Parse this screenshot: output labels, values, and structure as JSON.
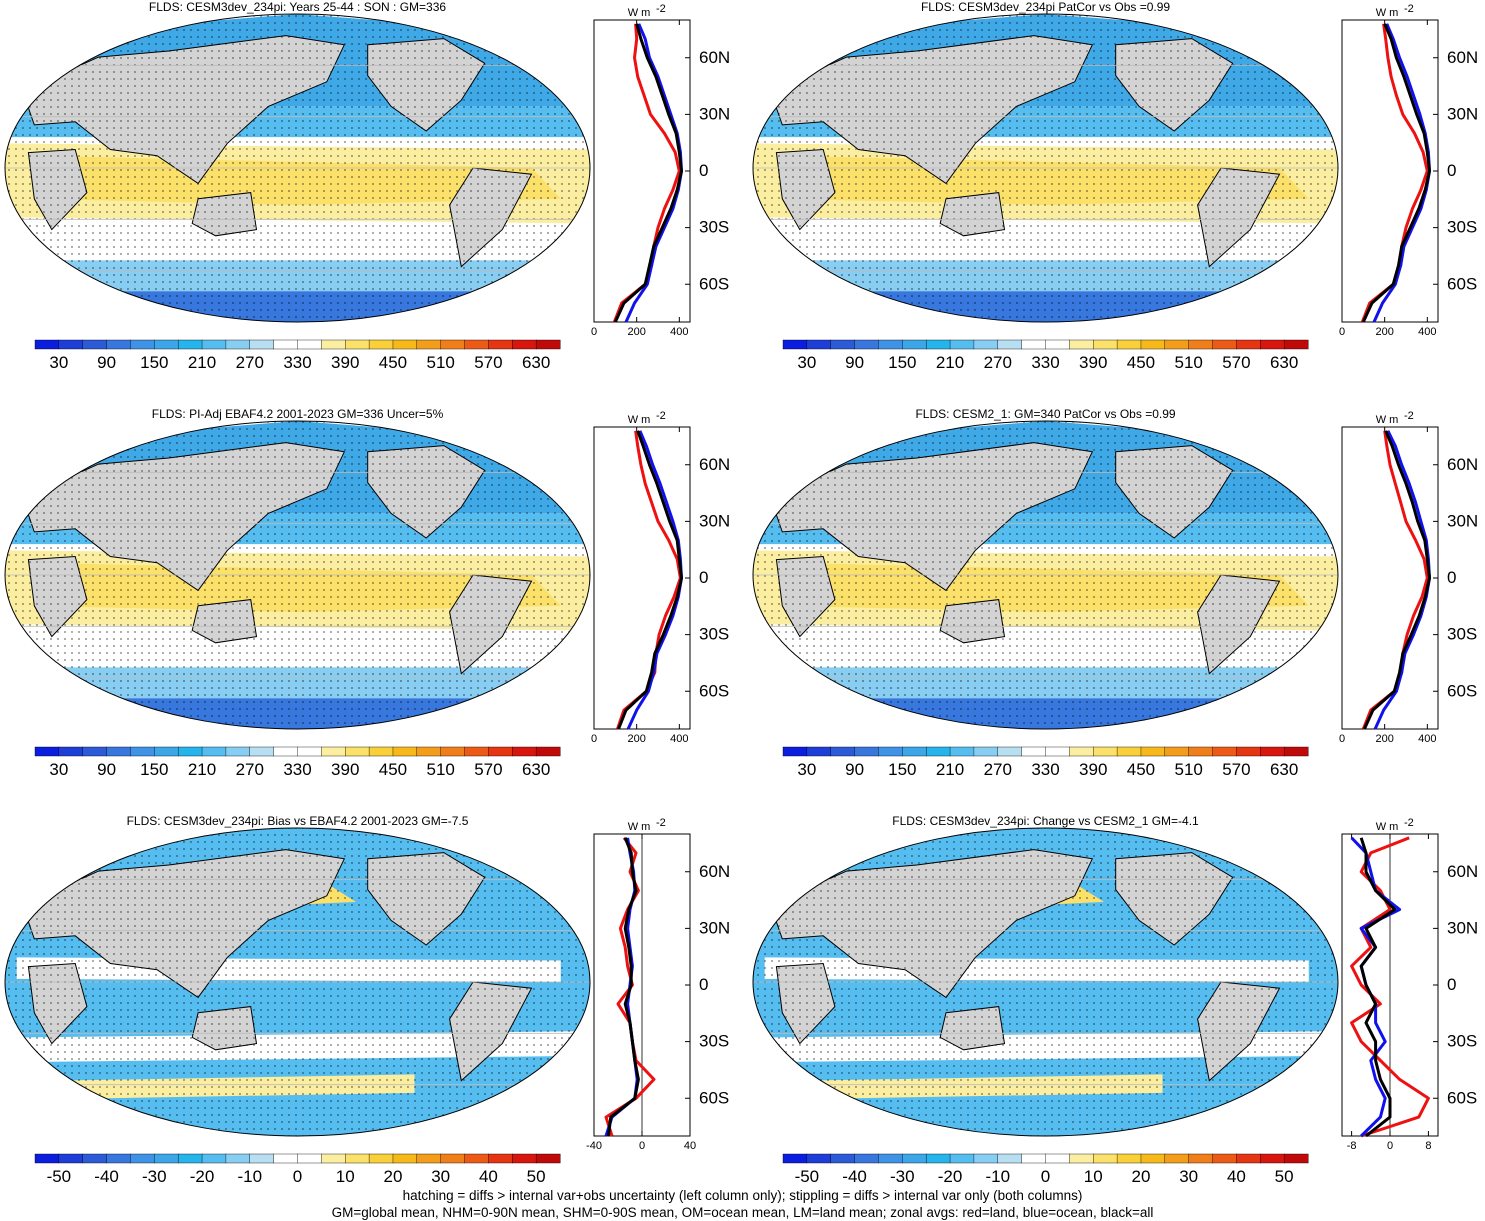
{
  "panels": [
    {
      "title": "FLDS: CESM3dev_234pi: Years 25-44 : SON : GM=336",
      "kind": "abs"
    },
    {
      "title": "FLDS: CESM3dev_234pi PatCor vs Obs =0.99",
      "kind": "abs"
    },
    {
      "title": "FLDS: PI-Adj EBAF4.2 2001-2023 GM=336 Uncer=5%",
      "kind": "abs"
    },
    {
      "title": "FLDS: CESM2_1: GM=340 PatCor vs Obs =0.99",
      "kind": "abs"
    },
    {
      "title": "FLDS: CESM3dev_234pi: Bias vs EBAF4.2 2001-2023  GM=-7.5",
      "kind": "diff"
    },
    {
      "title": "FLDS: CESM3dev_234pi: Change vs CESM2_1 GM=-4.1",
      "kind": "diff"
    }
  ],
  "colorbars": {
    "abs_labels": [
      "30",
      "90",
      "150",
      "210",
      "270",
      "330",
      "390",
      "450",
      "510",
      "570",
      "630"
    ],
    "diff_labels": [
      "-50",
      "-40",
      "-30",
      "-20",
      "-10",
      "0",
      "10",
      "20",
      "30",
      "40",
      "50"
    ],
    "colors": [
      "#0b1ee0",
      "#1e3ed8",
      "#2d5ad6",
      "#3777de",
      "#3f93e6",
      "#3ba6e8",
      "#26b4ec",
      "#56bdf0",
      "#88cdf2",
      "#b8def2",
      "#ffffff",
      "#ffffff",
      "#fbeea0",
      "#fbe06a",
      "#f9cf3a",
      "#f7b819",
      "#f49d1a",
      "#f07e1a",
      "#ec5a16",
      "#e53512",
      "#d8160e",
      "#c00a0a"
    ]
  },
  "zonal": {
    "unit": "W m",
    "unit_sup": "-2",
    "lat_labels": [
      "60N",
      "30N",
      "0",
      "30S",
      "60S"
    ],
    "abs_ticks": [
      "0",
      "200",
      "400"
    ],
    "diff_ticks_left": [
      "-40",
      "0",
      "40"
    ],
    "diff_ticks_right": [
      "-8",
      "0",
      "8"
    ]
  },
  "chart_data": [
    {
      "type": "line",
      "panel": 1,
      "title": "FLDS: CESM3dev_234pi: Years 25-44 : SON : GM=336",
      "xlim": [
        0,
        450
      ],
      "ylim": [
        -80,
        80
      ],
      "ylabel": "",
      "xlabel": "W m-2",
      "lat": [
        78,
        70,
        60,
        50,
        40,
        30,
        20,
        10,
        0,
        -10,
        -20,
        -30,
        -40,
        -50,
        -60,
        -70,
        -80
      ],
      "series": [
        {
          "name": "land",
          "color": "#e11",
          "values": [
            195,
            200,
            190,
            205,
            235,
            265,
            330,
            380,
            400,
            370,
            330,
            300,
            280,
            270,
            240,
            130,
            95
          ]
        },
        {
          "name": "ocean",
          "color": "#11e",
          "values": [
            210,
            240,
            260,
            300,
            330,
            360,
            390,
            405,
            410,
            395,
            370,
            330,
            290,
            270,
            250,
            190,
            150
          ]
        },
        {
          "name": "all",
          "color": "#000",
          "values": [
            200,
            220,
            250,
            290,
            320,
            350,
            385,
            400,
            410,
            390,
            360,
            320,
            280,
            260,
            240,
            140,
            100
          ]
        }
      ]
    },
    {
      "type": "line",
      "panel": 2,
      "title": "FLDS: CESM3dev_234pi PatCor vs Obs =0.99",
      "xlim": [
        0,
        450
      ],
      "ylim": [
        -80,
        80
      ],
      "ylabel": "",
      "xlabel": "W m-2",
      "lat": [
        78,
        70,
        60,
        50,
        40,
        30,
        20,
        10,
        0,
        -10,
        -20,
        -30,
        -40,
        -50,
        -60,
        -70,
        -80
      ],
      "series": [
        {
          "name": "land",
          "color": "#e11",
          "values": [
            195,
            205,
            215,
            230,
            255,
            285,
            340,
            380,
            400,
            370,
            330,
            300,
            280,
            275,
            240,
            130,
            95
          ]
        },
        {
          "name": "ocean",
          "color": "#11e",
          "values": [
            210,
            240,
            270,
            305,
            335,
            365,
            390,
            405,
            410,
            395,
            370,
            330,
            290,
            275,
            250,
            190,
            150
          ]
        },
        {
          "name": "all",
          "color": "#000",
          "values": [
            200,
            230,
            255,
            290,
            320,
            350,
            385,
            400,
            410,
            390,
            360,
            320,
            280,
            265,
            240,
            140,
            100
          ]
        }
      ]
    },
    {
      "type": "line",
      "panel": 3,
      "title": "FLDS: PI-Adj EBAF4.2 2001-2023 GM=336 Uncer=5%",
      "xlim": [
        0,
        450
      ],
      "ylim": [
        -80,
        80
      ],
      "ylabel": "",
      "xlabel": "W m-2",
      "lat": [
        78,
        70,
        60,
        50,
        40,
        30,
        20,
        10,
        0,
        -10,
        -20,
        -30,
        -40,
        -50,
        -60,
        -70,
        -80
      ],
      "series": [
        {
          "name": "land",
          "color": "#e11",
          "values": [
            195,
            205,
            220,
            240,
            270,
            300,
            350,
            390,
            405,
            375,
            335,
            305,
            290,
            285,
            245,
            140,
            110
          ]
        },
        {
          "name": "ocean",
          "color": "#11e",
          "values": [
            215,
            245,
            275,
            310,
            340,
            370,
            395,
            405,
            410,
            395,
            370,
            335,
            295,
            280,
            255,
            200,
            160
          ]
        },
        {
          "name": "all",
          "color": "#000",
          "values": [
            205,
            230,
            260,
            295,
            325,
            355,
            390,
            400,
            410,
            390,
            360,
            325,
            285,
            270,
            245,
            150,
            115
          ]
        }
      ]
    },
    {
      "type": "line",
      "panel": 4,
      "title": "FLDS: CESM2_1: GM=340 PatCor vs Obs =0.99",
      "xlim": [
        0,
        450
      ],
      "ylim": [
        -80,
        80
      ],
      "ylabel": "",
      "xlabel": "W m-2",
      "lat": [
        78,
        70,
        60,
        50,
        40,
        30,
        20,
        10,
        0,
        -10,
        -20,
        -30,
        -40,
        -50,
        -60,
        -70,
        -80
      ],
      "series": [
        {
          "name": "land",
          "color": "#e11",
          "values": [
            200,
            210,
            225,
            250,
            275,
            300,
            345,
            385,
            400,
            375,
            335,
            305,
            285,
            280,
            245,
            135,
            100
          ]
        },
        {
          "name": "ocean",
          "color": "#11e",
          "values": [
            215,
            250,
            280,
            315,
            345,
            370,
            395,
            405,
            410,
            395,
            370,
            335,
            295,
            280,
            255,
            195,
            155
          ]
        },
        {
          "name": "all",
          "color": "#000",
          "values": [
            205,
            235,
            265,
            300,
            330,
            355,
            388,
            400,
            410,
            390,
            362,
            325,
            285,
            270,
            245,
            145,
            105
          ]
        }
      ]
    },
    {
      "type": "line",
      "panel": 5,
      "title": "FLDS: CESM3dev_234pi: Bias vs EBAF4.2 2001-2023  GM=-7.5",
      "xlim": [
        -40,
        40
      ],
      "ylim": [
        -80,
        80
      ],
      "ylabel": "",
      "xlabel": "W m-2",
      "lat": [
        78,
        70,
        60,
        50,
        40,
        30,
        20,
        10,
        0,
        -10,
        -20,
        -30,
        -40,
        -50,
        -60,
        -70,
        -80
      ],
      "series": [
        {
          "name": "land",
          "color": "#e11",
          "values": [
            -15,
            -5,
            -10,
            -3,
            -12,
            -18,
            -14,
            -12,
            -8,
            -20,
            -10,
            -8,
            -5,
            10,
            -5,
            -30,
            -25
          ]
        },
        {
          "name": "ocean",
          "color": "#11e",
          "values": [
            -12,
            -10,
            -7,
            -6,
            -10,
            -12,
            -10,
            -8,
            -10,
            -12,
            -10,
            -8,
            -6,
            -4,
            -6,
            -25,
            -30
          ]
        },
        {
          "name": "all",
          "color": "#000",
          "values": [
            -14,
            -9,
            -8,
            -5,
            -11,
            -14,
            -11,
            -9,
            -9,
            -14,
            -10,
            -8,
            -6,
            -3,
            -6,
            -26,
            -28
          ]
        }
      ]
    },
    {
      "type": "line",
      "panel": 6,
      "title": "FLDS: CESM3dev_234pi: Change vs CESM2_1 GM=-4.1",
      "xlim": [
        -10,
        10
      ],
      "ylim": [
        -80,
        80
      ],
      "ylabel": "",
      "xlabel": "W m-2",
      "lat": [
        78,
        70,
        60,
        50,
        40,
        30,
        20,
        10,
        0,
        -10,
        -20,
        -30,
        -40,
        -50,
        -60,
        -70,
        -80
      ],
      "series": [
        {
          "name": "land",
          "color": "#e11",
          "values": [
            4,
            -4,
            -6,
            -2,
            0,
            -6,
            -4,
            -8,
            -6,
            -2,
            -8,
            -6,
            -2,
            2,
            8,
            6,
            -6
          ]
        },
        {
          "name": "ocean",
          "color": "#11e",
          "values": [
            -8,
            -5,
            -4,
            -3,
            2,
            -6,
            -3,
            -6,
            -5,
            -3,
            -3,
            -1,
            -4,
            -3,
            -1,
            -2,
            -6
          ]
        },
        {
          "name": "all",
          "color": "#000",
          "values": [
            -6,
            -5,
            -5,
            -3,
            1,
            -5,
            -3,
            -6,
            -5,
            -3,
            -5,
            -3,
            -3,
            -2,
            0,
            0,
            -5
          ]
        }
      ]
    }
  ],
  "footer": {
    "line1": "hatching = diffs > internal var+obs uncertainty (left column only); stippling = diffs > internal var only (both columns)",
    "line2": "GM=global mean, NHM=0-90N mean, SHM=0-90S mean, OM=ocean mean, LM=land mean; zonal avgs: red=land, blue=ocean, black=all"
  }
}
